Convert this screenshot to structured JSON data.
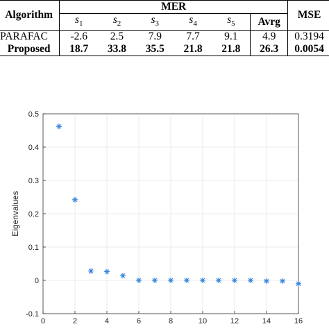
{
  "table": {
    "header": {
      "algorithm": "Algorithm",
      "mer": "MER",
      "mse": "MSE",
      "sub": [
        "s",
        "s",
        "s",
        "s",
        "s"
      ],
      "sub_idx": [
        "1",
        "2",
        "3",
        "4",
        "5"
      ],
      "avrg": "Avrg"
    },
    "rows": [
      {
        "name": "PARAFAC",
        "vals": [
          "-2.6",
          "2.5",
          "7.9",
          "7.7",
          "9.1",
          "4.9"
        ],
        "mse": "0.3194"
      },
      {
        "name": "Proposed",
        "vals": [
          "18.7",
          "33.8",
          "35.5",
          "21.8",
          "21.8",
          "26.3"
        ],
        "mse": "0.0054"
      }
    ]
  },
  "chart_data": {
    "type": "scatter",
    "ylabel": "Eigenvalues",
    "xlabel": "",
    "xlim": [
      0,
      16
    ],
    "ylim": [
      -0.1,
      0.5
    ],
    "xticks": [
      "0",
      "2",
      "4",
      "6",
      "8",
      "10",
      "12",
      "14",
      "16"
    ],
    "yticks": [
      "-0.1",
      "0",
      "0.1",
      "0.2",
      "0.3",
      "0.4",
      "0.5"
    ],
    "grid": true,
    "marker": "asterisk",
    "color": "#2f7fe0",
    "x": [
      1,
      2,
      3,
      4,
      5,
      6,
      7,
      8,
      9,
      10,
      11,
      12,
      13,
      14,
      15,
      16
    ],
    "y": [
      0.462,
      0.242,
      0.028,
      0.026,
      0.014,
      0.0,
      0.0,
      0.0,
      0.0,
      0.0,
      0.0,
      0.0,
      0.0,
      -0.002,
      -0.002,
      -0.01
    ]
  }
}
